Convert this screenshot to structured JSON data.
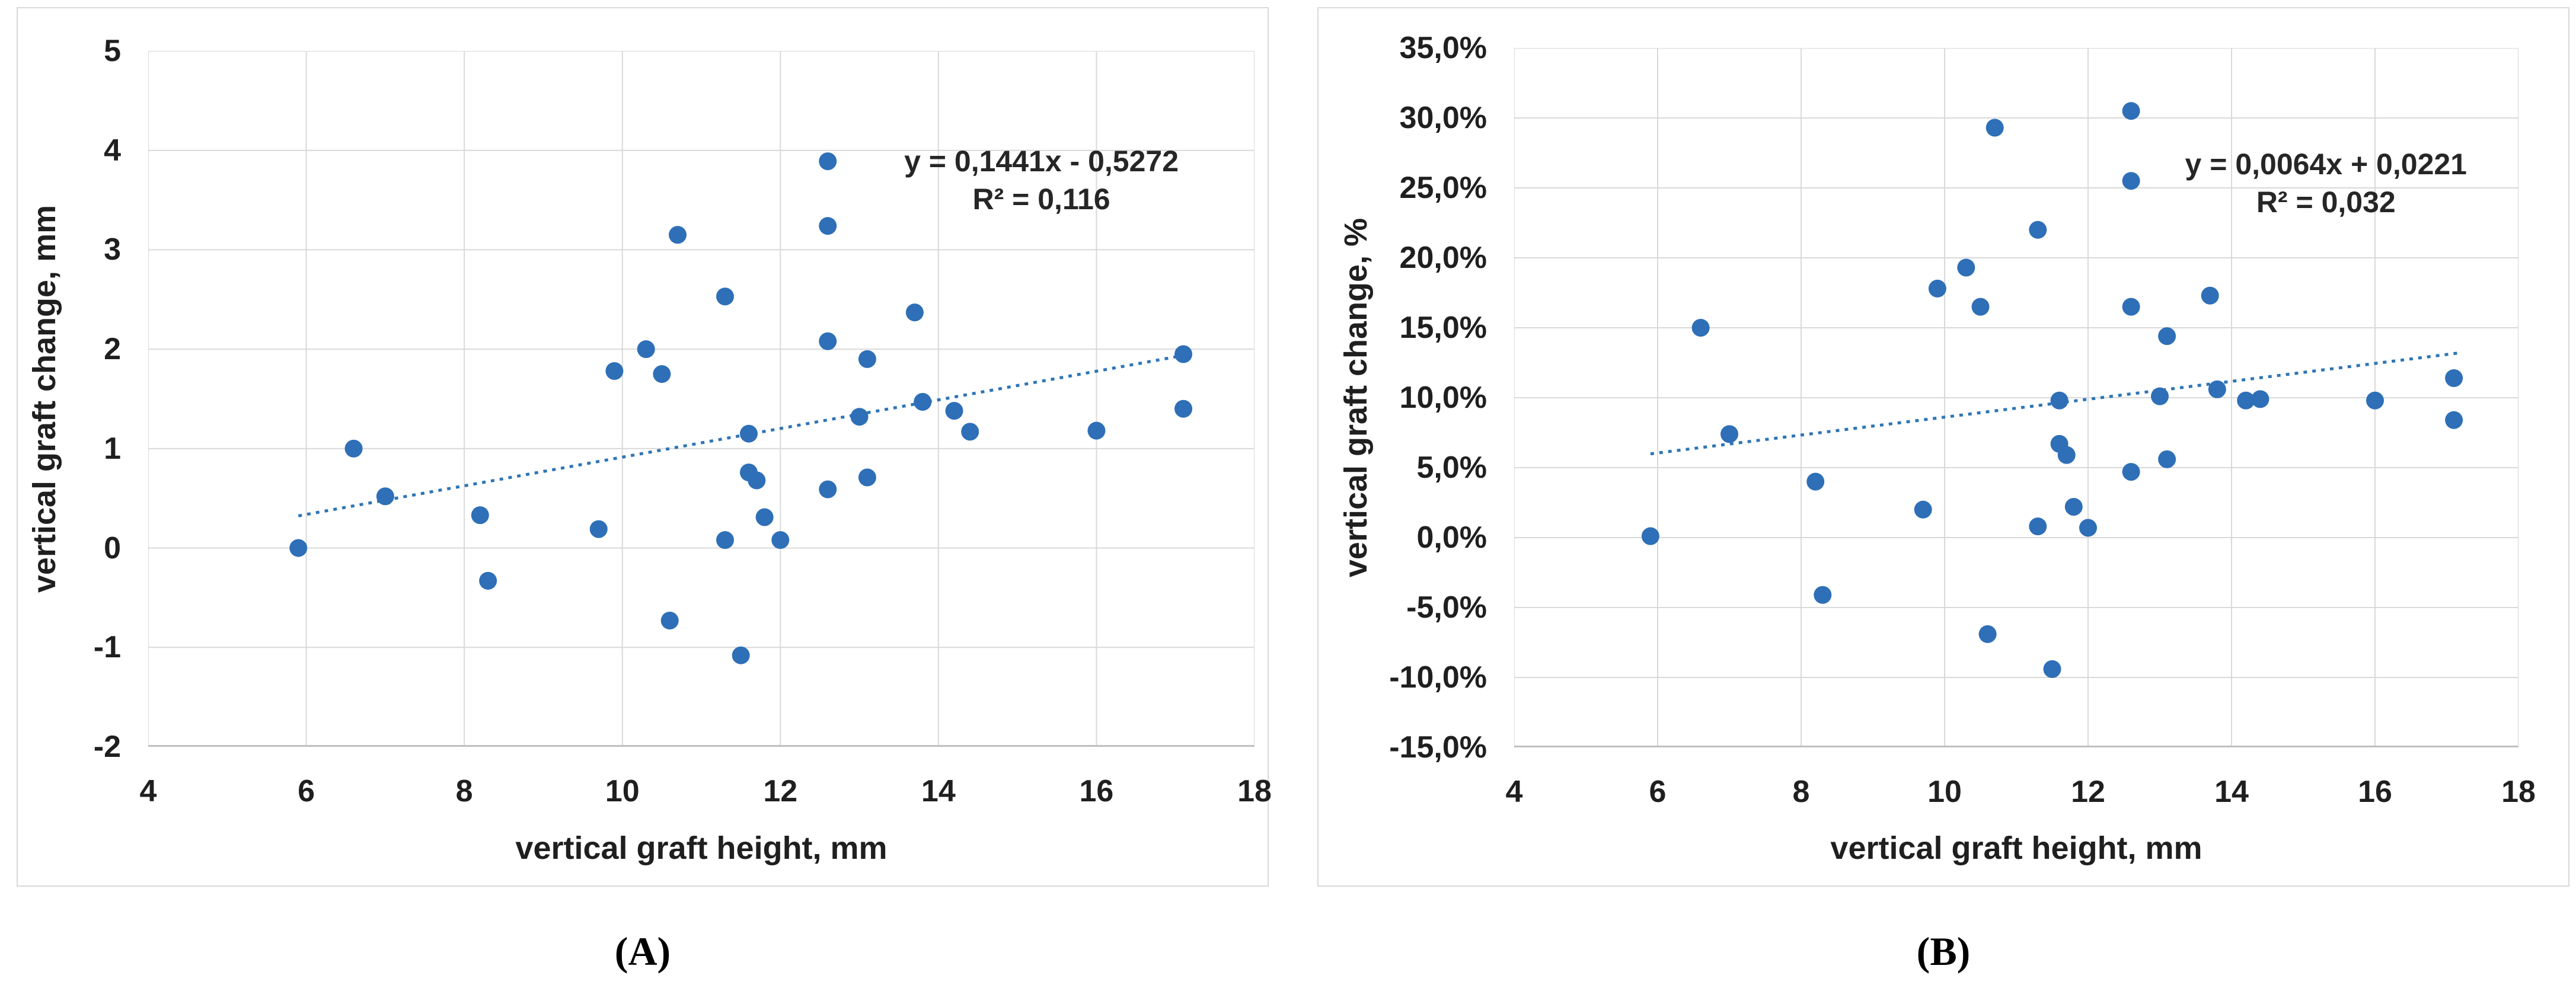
{
  "colors": {
    "marker": "#2e6fb7",
    "trendline": "#2e75b6",
    "gridline": "#d9d9d9",
    "axis_line": "#bfbfbf",
    "text": "#1f1f1f",
    "panel_border": "#d9d9d9"
  },
  "chart_data": [
    {
      "id": "A",
      "type": "scatter",
      "caption": "(A)",
      "x_label": "vertical graft height, mm",
      "y_label": "vertical graft change, mm",
      "xlim": [
        4,
        18
      ],
      "ylim": [
        -2,
        5
      ],
      "grid": true,
      "x_ticks": [
        4,
        6,
        8,
        10,
        12,
        14,
        16,
        18
      ],
      "x_tick_labels": [
        "4",
        "6",
        "8",
        "10",
        "12",
        "14",
        "16",
        "18"
      ],
      "y_ticks": [
        5,
        4,
        3,
        2,
        1,
        0,
        -1,
        -2
      ],
      "y_tick_labels": [
        "5",
        "4",
        "3",
        "2",
        "1",
        "0",
        "-1",
        "-2"
      ],
      "equation_line1": "y = 0,1441x - 0,5272",
      "equation_line2": "R² = 0,116",
      "trendline": {
        "slope": 0.1441,
        "intercept": -0.5272,
        "x_start": 5.9,
        "x_end": 17.15,
        "y_multiplier": 1,
        "style": "dotted"
      },
      "points": [
        [
          5.9,
          0.0
        ],
        [
          6.6,
          1.0
        ],
        [
          7.0,
          0.52
        ],
        [
          8.2,
          0.33
        ],
        [
          8.3,
          -0.33
        ],
        [
          9.7,
          0.19
        ],
        [
          9.9,
          1.78
        ],
        [
          10.3,
          2.0
        ],
        [
          10.5,
          1.75
        ],
        [
          10.6,
          -0.73
        ],
        [
          10.7,
          3.15
        ],
        [
          11.3,
          0.08
        ],
        [
          11.3,
          2.53
        ],
        [
          11.5,
          -1.08
        ],
        [
          11.6,
          0.76
        ],
        [
          11.6,
          1.15
        ],
        [
          11.7,
          0.68
        ],
        [
          11.8,
          0.31
        ],
        [
          12.0,
          0.08
        ],
        [
          12.6,
          0.59
        ],
        [
          12.6,
          2.08
        ],
        [
          12.6,
          3.24
        ],
        [
          12.6,
          3.89
        ],
        [
          13.0,
          1.32
        ],
        [
          13.1,
          0.71
        ],
        [
          13.1,
          1.9
        ],
        [
          13.7,
          2.37
        ],
        [
          13.8,
          1.47
        ],
        [
          14.2,
          1.38
        ],
        [
          14.4,
          1.17
        ],
        [
          16.0,
          1.18
        ],
        [
          17.1,
          1.4
        ],
        [
          17.1,
          1.95
        ]
      ]
    },
    {
      "id": "B",
      "type": "scatter",
      "caption": "(B)",
      "x_label": "vertical graft height, mm",
      "y_label": "vertical graft change, %",
      "xlim": [
        4,
        18
      ],
      "ylim": [
        -15,
        35
      ],
      "grid": true,
      "x_ticks": [
        4,
        6,
        8,
        10,
        12,
        14,
        16,
        18
      ],
      "x_tick_labels": [
        "4",
        "6",
        "8",
        "10",
        "12",
        "14",
        "16",
        "18"
      ],
      "y_ticks": [
        35,
        30,
        25,
        20,
        15,
        10,
        5,
        0,
        -5,
        -10,
        -15
      ],
      "y_tick_labels": [
        "35,0%",
        "30,0%",
        "25,0%",
        "20,0%",
        "15,0%",
        "10,0%",
        "5,0%",
        "0,0%",
        "-5,0%",
        "-10,0%",
        "-15,0%"
      ],
      "equation_line1": "y = 0,0064x + 0,0221",
      "equation_line2": "R² = 0,032",
      "trendline": {
        "slope": 0.0064,
        "intercept": 0.0221,
        "x_start": 5.9,
        "x_end": 17.15,
        "y_multiplier": 100,
        "style": "dotted"
      },
      "points": [
        [
          5.9,
          0.1
        ],
        [
          6.6,
          15.0
        ],
        [
          7.0,
          7.4
        ],
        [
          8.2,
          4.0
        ],
        [
          8.3,
          -4.1
        ],
        [
          9.7,
          2.0
        ],
        [
          9.9,
          17.8
        ],
        [
          10.3,
          19.3
        ],
        [
          10.5,
          16.5
        ],
        [
          10.6,
          -6.9
        ],
        [
          10.7,
          29.3
        ],
        [
          11.3,
          0.8
        ],
        [
          11.3,
          22.0
        ],
        [
          11.5,
          -9.4
        ],
        [
          11.6,
          6.7
        ],
        [
          11.6,
          9.8
        ],
        [
          11.7,
          5.9
        ],
        [
          11.8,
          2.2
        ],
        [
          12.0,
          0.7
        ],
        [
          12.6,
          4.7
        ],
        [
          12.6,
          16.5
        ],
        [
          12.6,
          25.5
        ],
        [
          12.6,
          30.5
        ],
        [
          13.0,
          10.1
        ],
        [
          13.1,
          5.6
        ],
        [
          13.1,
          14.4
        ],
        [
          13.7,
          17.3
        ],
        [
          13.8,
          10.6
        ],
        [
          14.2,
          9.8
        ],
        [
          14.4,
          9.9
        ],
        [
          16.0,
          9.8
        ],
        [
          17.1,
          8.4
        ],
        [
          17.1,
          11.4
        ]
      ]
    }
  ]
}
